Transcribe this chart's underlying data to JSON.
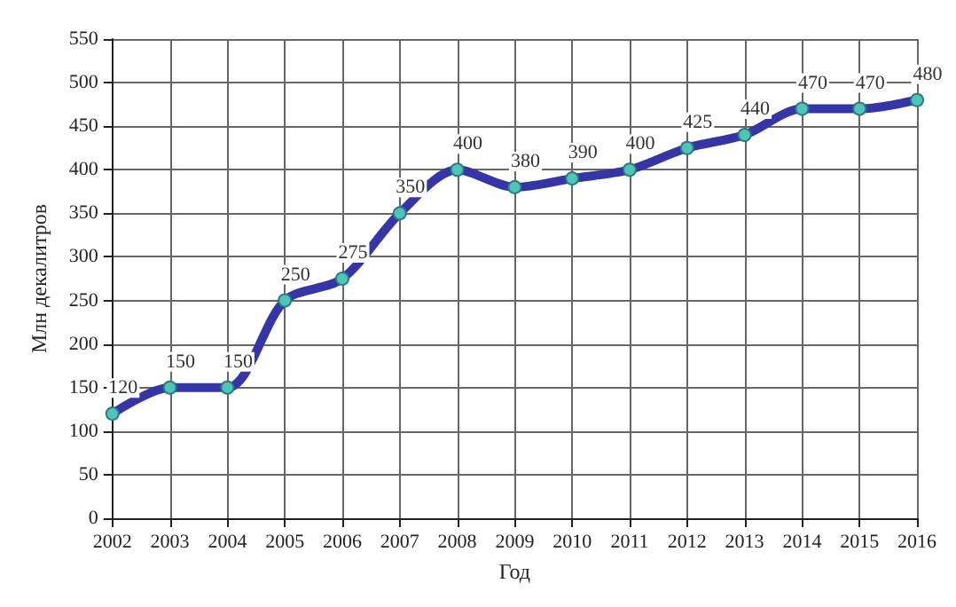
{
  "chart_data": {
    "type": "line",
    "xlabel": "Год",
    "ylabel": "Млн декалитров",
    "x": [
      2002,
      2003,
      2004,
      2005,
      2006,
      2007,
      2008,
      2009,
      2010,
      2011,
      2012,
      2013,
      2014,
      2015,
      2016
    ],
    "series": [
      {
        "color": "#3535a8",
        "values": [
          120,
          150,
          150,
          250,
          275,
          350,
          400,
          380,
          390,
          400,
          425,
          440,
          470,
          470,
          480
        ]
      }
    ],
    "xlim": [
      2002,
      2016
    ],
    "xticks": [
      2002,
      2003,
      2004,
      2005,
      2006,
      2007,
      2008,
      2009,
      2010,
      2011,
      2012,
      2013,
      2014,
      2015,
      2016
    ],
    "ylim": [
      0,
      550
    ],
    "yticks": [
      0,
      50,
      100,
      150,
      200,
      250,
      300,
      350,
      400,
      450,
      500,
      550
    ],
    "grid": true,
    "marker": "circle",
    "line_style": "solid",
    "data_labels": true
  }
}
